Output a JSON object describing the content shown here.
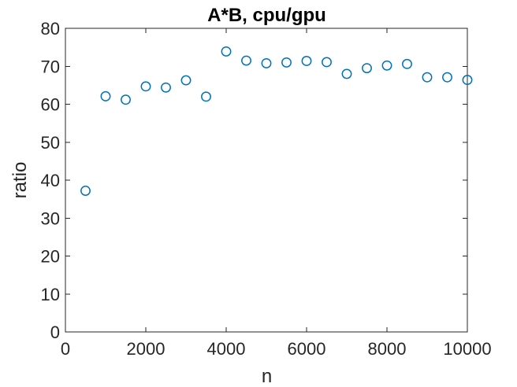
{
  "figure": {
    "background": "#ffffff"
  },
  "chart_data": {
    "type": "scatter",
    "title": "A*B, cpu/gpu",
    "xlabel": "n",
    "ylabel": "ratio",
    "xlim": [
      0,
      10000
    ],
    "ylim": [
      0,
      80
    ],
    "xticks": [
      0,
      2000,
      4000,
      6000,
      8000,
      10000
    ],
    "xtick_labels": [
      "0",
      "2000",
      "4000",
      "6000",
      "8000",
      "10000"
    ],
    "yticks": [
      0,
      10,
      20,
      30,
      40,
      50,
      60,
      70,
      80
    ],
    "ytick_labels": [
      "0",
      "10",
      "20",
      "30",
      "40",
      "50",
      "60",
      "70",
      "80"
    ],
    "grid": false,
    "legend": "none",
    "marker": "open-circle",
    "marker_color": "#0072BD",
    "axis_color": "#262626",
    "tick_label_color": "#262626",
    "title_color": "#000000",
    "series": [
      {
        "x": [
          500,
          1000,
          1500,
          2000,
          2500,
          3000,
          3500,
          4000,
          4500,
          5000,
          5500,
          6000,
          6500,
          7000,
          7500,
          8000,
          8500,
          9000,
          9500,
          10000
        ],
        "y": [
          37.2,
          62.1,
          61.2,
          64.7,
          64.4,
          66.3,
          62.0,
          73.9,
          71.5,
          70.8,
          71.0,
          71.4,
          71.1,
          68.0,
          69.5,
          70.2,
          70.6,
          67.1,
          67.1,
          66.4
        ]
      }
    ]
  }
}
